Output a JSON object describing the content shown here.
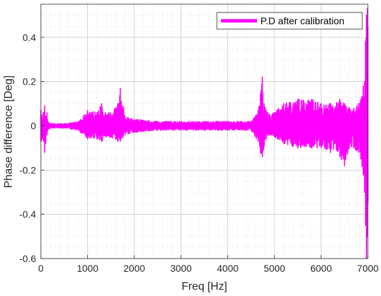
{
  "chart_data": {
    "type": "line",
    "title": "",
    "xlabel": "Freq [Hz]",
    "ylabel": "Phase difference [Deg]",
    "xlim": [
      0,
      7000
    ],
    "ylim": [
      -0.6,
      0.55
    ],
    "xticks": [
      0,
      1000,
      2000,
      3000,
      4000,
      5000,
      6000,
      7000
    ],
    "xtick_labels": [
      "0",
      "1000",
      "2000",
      "3000",
      "4000",
      "5000",
      "6000",
      "7000"
    ],
    "yticks": [
      -0.6,
      -0.4,
      -0.2,
      0,
      0.2,
      0.4
    ],
    "ytick_labels": [
      "-0.6",
      "-0.4",
      "-0.2",
      "0",
      "0.2",
      "0.4"
    ],
    "grid": true,
    "minor_grid": true,
    "legend_position": "top-right",
    "series": [
      {
        "name": "P.D after calibration",
        "color": "#ff00ff",
        "envelope": {
          "x": [
            0,
            50,
            80,
            100,
            130,
            150,
            200,
            300,
            500,
            800,
            1000,
            1200,
            1300,
            1400,
            1600,
            1650,
            1700,
            1800,
            2000,
            2500,
            3000,
            3500,
            4000,
            4300,
            4500,
            4650,
            4700,
            4740,
            4780,
            4820,
            4900,
            5000,
            5200,
            5500,
            5800,
            6000,
            6200,
            6400,
            6500,
            6600,
            6700,
            6800,
            6850,
            6900,
            6930,
            6950,
            6970,
            6990,
            7000
          ],
          "upper": [
            0.07,
            0.06,
            0.09,
            0.04,
            0.06,
            0.02,
            0.01,
            0.01,
            0.01,
            0.02,
            0.07,
            0.06,
            0.1,
            0.05,
            0.08,
            0.1,
            0.17,
            0.04,
            0.03,
            0.02,
            0.02,
            0.02,
            0.02,
            0.02,
            0.02,
            0.07,
            0.14,
            0.22,
            0.1,
            0.07,
            0.05,
            0.06,
            0.1,
            0.12,
            0.12,
            0.1,
            0.1,
            0.12,
            0.1,
            0.08,
            0.08,
            0.1,
            0.12,
            0.18,
            0.2,
            0.38,
            0.5,
            0.53,
            0.45
          ],
          "lower": [
            -0.07,
            -0.06,
            -0.12,
            -0.08,
            -0.04,
            -0.02,
            -0.01,
            -0.01,
            -0.01,
            -0.02,
            -0.06,
            -0.06,
            -0.07,
            -0.05,
            -0.06,
            -0.07,
            -0.07,
            -0.04,
            -0.03,
            -0.02,
            -0.02,
            -0.02,
            -0.02,
            -0.02,
            -0.02,
            -0.07,
            -0.12,
            -0.14,
            -0.09,
            -0.06,
            -0.04,
            -0.05,
            -0.08,
            -0.1,
            -0.1,
            -0.1,
            -0.12,
            -0.14,
            -0.18,
            -0.1,
            -0.1,
            -0.12,
            -0.15,
            -0.22,
            -0.3,
            -0.45,
            -0.6,
            -0.5,
            -0.35
          ]
        }
      }
    ]
  }
}
